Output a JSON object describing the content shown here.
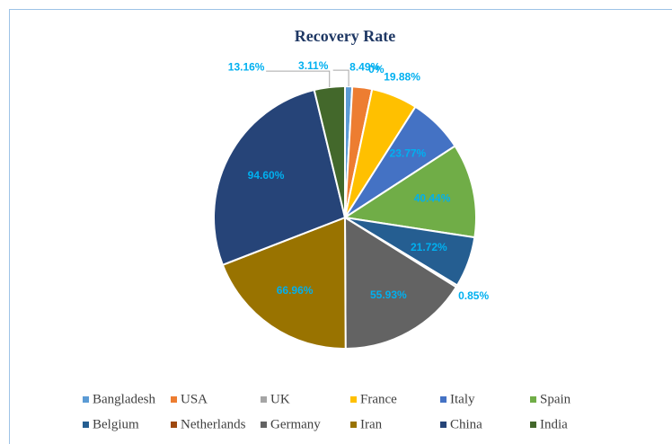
{
  "chart_data": {
    "type": "pie",
    "title": "Recovery Rate",
    "categories": [
      "Bangladesh",
      "USA",
      "UK",
      "France",
      "Italy",
      "Spain",
      "Belgium",
      "Netherlands",
      "Germany",
      "Iran",
      "China",
      "India"
    ],
    "values": [
      3.11,
      8.49,
      0,
      19.88,
      23.77,
      40.44,
      21.72,
      0.85,
      55.93,
      66.96,
      94.6,
      13.16
    ],
    "value_labels": [
      "3.11%",
      "8.49%",
      "0%",
      "19.88%",
      "23.77%",
      "40.44%",
      "21.72%",
      "0.85%",
      "55.93%",
      "66.96%",
      "94.60%",
      "13.16%"
    ],
    "colors": [
      "#5b9bd5",
      "#ed7d31",
      "#a5a5a5",
      "#ffc000",
      "#4472c4",
      "#70ad47",
      "#255e91",
      "#9e480e",
      "#636363",
      "#997300",
      "#264478",
      "#43682b"
    ],
    "legend": "bottom"
  }
}
